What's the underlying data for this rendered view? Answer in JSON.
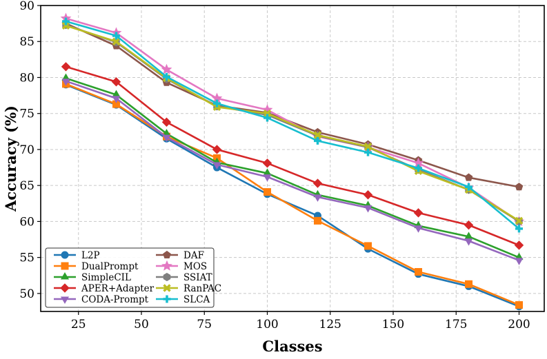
{
  "chart_data": {
    "type": "line",
    "title": "",
    "xlabel": "Classes",
    "ylabel": "Accuracy (%)",
    "xlim": [
      10,
      210
    ],
    "ylim": [
      47.5,
      90
    ],
    "xticks": [
      25,
      50,
      75,
      100,
      125,
      150,
      175,
      200
    ],
    "yticks": [
      50,
      55,
      60,
      65,
      70,
      75,
      80,
      85,
      90
    ],
    "grid": true,
    "legend_position": "bottom-left",
    "x": [
      20,
      40,
      60,
      80,
      100,
      120,
      140,
      160,
      180,
      200
    ],
    "series": [
      {
        "name": "L2P",
        "color": "#1f77b4",
        "marker": "circle",
        "values": [
          79.0,
          76.2,
          71.5,
          67.5,
          63.8,
          60.8,
          56.2,
          52.7,
          51.0,
          48.2
        ]
      },
      {
        "name": "DualPrompt",
        "color": "#ff7f0e",
        "marker": "square",
        "values": [
          79.1,
          76.3,
          71.8,
          68.8,
          64.1,
          60.1,
          56.6,
          53.0,
          51.3,
          48.4
        ]
      },
      {
        "name": "SimpleCIL",
        "color": "#2ca02c",
        "marker": "triangle-up",
        "values": [
          79.9,
          77.6,
          72.2,
          68.2,
          66.7,
          63.7,
          62.2,
          59.4,
          57.9,
          55.0
        ]
      },
      {
        "name": "APER+Adapter",
        "color": "#d62728",
        "marker": "diamond",
        "values": [
          81.5,
          79.4,
          73.8,
          70.0,
          68.1,
          65.3,
          63.7,
          61.2,
          59.5,
          56.7
        ]
      },
      {
        "name": "CODA-Prompt",
        "color": "#9467bd",
        "marker": "triangle-down",
        "values": [
          79.5,
          77.1,
          71.7,
          67.9,
          66.2,
          63.4,
          61.9,
          59.1,
          57.3,
          54.6
        ]
      },
      {
        "name": "DAF",
        "color": "#8c564b",
        "marker": "pentagon",
        "values": [
          87.5,
          84.4,
          79.3,
          76.1,
          75.1,
          72.4,
          70.7,
          68.5,
          66.1,
          64.8
        ]
      },
      {
        "name": "MOS",
        "color": "#e377c2",
        "marker": "star",
        "values": [
          88.2,
          86.2,
          81.1,
          77.1,
          75.5,
          71.8,
          70.3,
          68.1,
          64.7,
          60.0
        ]
      },
      {
        "name": "SSIAT",
        "color": "#7f7f7f",
        "marker": "hexagon",
        "values": [
          87.3,
          84.9,
          79.8,
          76.0,
          74.8,
          71.9,
          70.3,
          67.2,
          64.4,
          60.0
        ]
      },
      {
        "name": "RanPAC",
        "color": "#bcbd22",
        "marker": "x",
        "values": [
          87.2,
          85.0,
          79.9,
          75.9,
          75.0,
          72.0,
          70.4,
          67.0,
          64.4,
          60.1
        ]
      },
      {
        "name": "SLCA",
        "color": "#17becf",
        "marker": "plus",
        "values": [
          87.8,
          85.8,
          80.1,
          76.4,
          74.4,
          71.2,
          69.6,
          67.4,
          64.8,
          59.0
        ]
      }
    ]
  }
}
